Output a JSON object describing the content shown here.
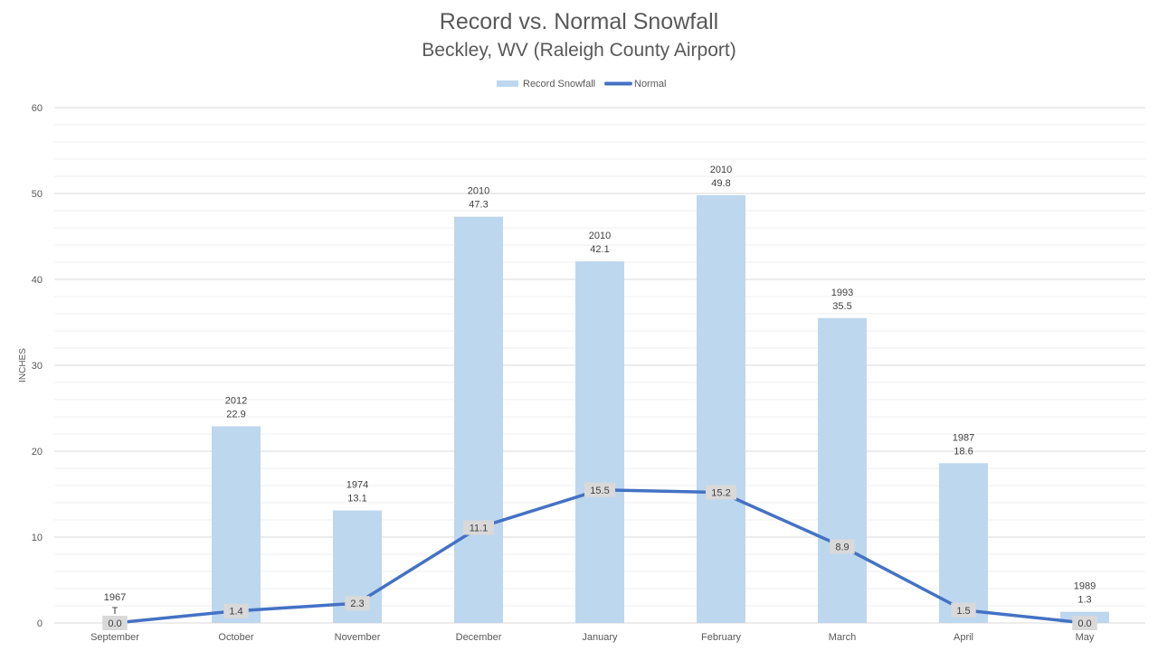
{
  "chart_data": {
    "type": "bar",
    "title": "Record vs. Normal Snowfall",
    "subtitle": "Beckley, WV (Raleigh County Airport)",
    "ylabel": "INCHES",
    "xlabel": "",
    "ylim": [
      0,
      60
    ],
    "yticks": [
      0,
      10,
      20,
      30,
      40,
      50,
      60
    ],
    "grid": true,
    "legend_position": "top-center",
    "categories": [
      "September",
      "October",
      "November",
      "December",
      "January",
      "February",
      "March",
      "April",
      "May"
    ],
    "series": [
      {
        "name": "Record Snowfall",
        "type": "bar",
        "color": "#BDD7EE",
        "values": [
          0.0,
          22.9,
          13.1,
          47.3,
          42.1,
          49.8,
          35.5,
          18.6,
          1.3
        ],
        "value_labels": [
          "T",
          "22.9",
          "13.1",
          "47.3",
          "42.1",
          "49.8",
          "35.5",
          "18.6",
          "1.3"
        ],
        "years": [
          "1967",
          "2012",
          "1974",
          "2010",
          "2010",
          "2010",
          "1993",
          "1987",
          "1989"
        ]
      },
      {
        "name": "Normal",
        "type": "line",
        "color": "#4472C4",
        "values": [
          0.0,
          1.4,
          2.3,
          11.1,
          15.5,
          15.2,
          8.9,
          1.5,
          0.0
        ],
        "value_labels": [
          "0.0",
          "1.4",
          "2.3",
          "11.1",
          "15.5",
          "15.2",
          "8.9",
          "1.5",
          "0.0"
        ]
      }
    ]
  }
}
